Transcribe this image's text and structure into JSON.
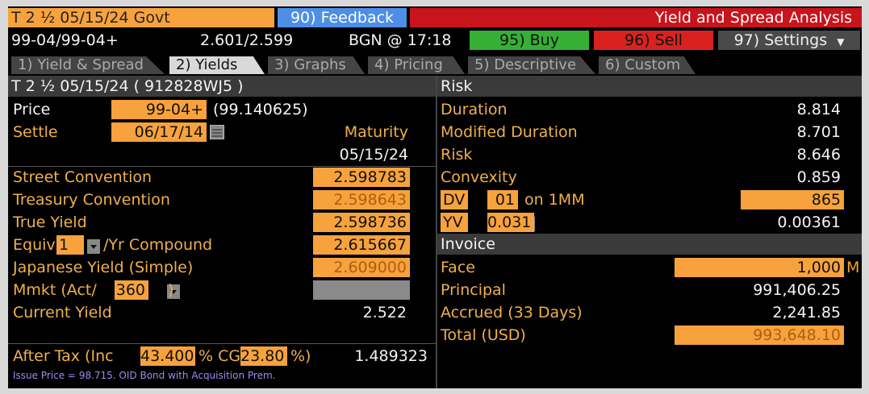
{
  "header": {
    "security": "T 2 ½ 05/15/24 Govt",
    "feedback": "90) Feedback",
    "title": "Yield and Spread Analysis",
    "price_range": "99-04/99-04+",
    "yield_range": "2.601/2.599",
    "bgn": "BGN @ 17:18",
    "buy": "95) Buy",
    "sell": "96) Sell",
    "settings": "97) Settings"
  },
  "tabs": [
    {
      "label": "1) Yield & Spread"
    },
    {
      "label": "2) Yields"
    },
    {
      "label": "3) Graphs"
    },
    {
      "label": "4) Pricing"
    },
    {
      "label": "5) Descriptive"
    },
    {
      "label": "6) Custom"
    }
  ],
  "left": {
    "security_id": "T 2 ½ 05/15/24 ( 912828WJ5 )",
    "price_label": "Price",
    "price_value": "99-04+",
    "price_decimal": "(99.140625)",
    "settle_label": "Settle",
    "settle_value": "06/17/14",
    "maturity_label": "Maturity",
    "maturity_value": "05/15/24",
    "yields": {
      "street_label": "Street Convention",
      "street_value": "2.598783",
      "treasury_label": "Treasury Convention",
      "treasury_value": "2.598643",
      "true_label": "True Yield",
      "true_value": "2.598736",
      "equiv_label": "Equiv",
      "equiv_freq": "1",
      "equiv_suffix": "/Yr Compound",
      "equiv_value": "2.615667",
      "japanese_label": "Japanese Yield (Simple)",
      "japanese_value": "2.609000",
      "mmkt_label": "Mmkt (Act/",
      "mmkt_basis": "360",
      "mmkt_close": ")",
      "current_label": "Current Yield",
      "current_value": "2.522"
    },
    "after_tax": {
      "label": "After Tax  (Inc",
      "inc_rate": "43.400",
      "cg_label": "% CG",
      "cg_rate": "23.80",
      "close": "%)",
      "value": "1.489323"
    },
    "note": "Issue Price = 98.715.  OID Bond with Acquisition Prem."
  },
  "risk": {
    "header": "Risk",
    "duration_label": "Duration",
    "duration_value": "8.814",
    "mod_duration_label": "Modified Duration",
    "mod_duration_value": "8.701",
    "risk_label": "Risk",
    "risk_value": "8.646",
    "convexity_label": "Convexity",
    "convexity_value": "0.859",
    "dv_label": "DV",
    "dv_field": "01",
    "dv_suffix": "on 1MM",
    "dv_value": "865",
    "yv_label": "YV",
    "yv_field": "0.031",
    "yv_value": "0.00361"
  },
  "invoice": {
    "header": "Invoice",
    "face_label": "Face",
    "face_value": "1,000",
    "face_unit": "M",
    "principal_label": "Principal",
    "principal_value": "991,406.25",
    "accrued_label": "Accrued (33 Days)",
    "accrued_value": "2,241.85",
    "total_label": "Total  (USD)",
    "total_value": "993,648.10"
  },
  "colors": {
    "field": "#f7a23c",
    "label": "#f0b04a",
    "buy": "#35b034",
    "sell": "#d9221e",
    "feedback": "#4d8fe6",
    "title_bar": "#c8141c"
  }
}
